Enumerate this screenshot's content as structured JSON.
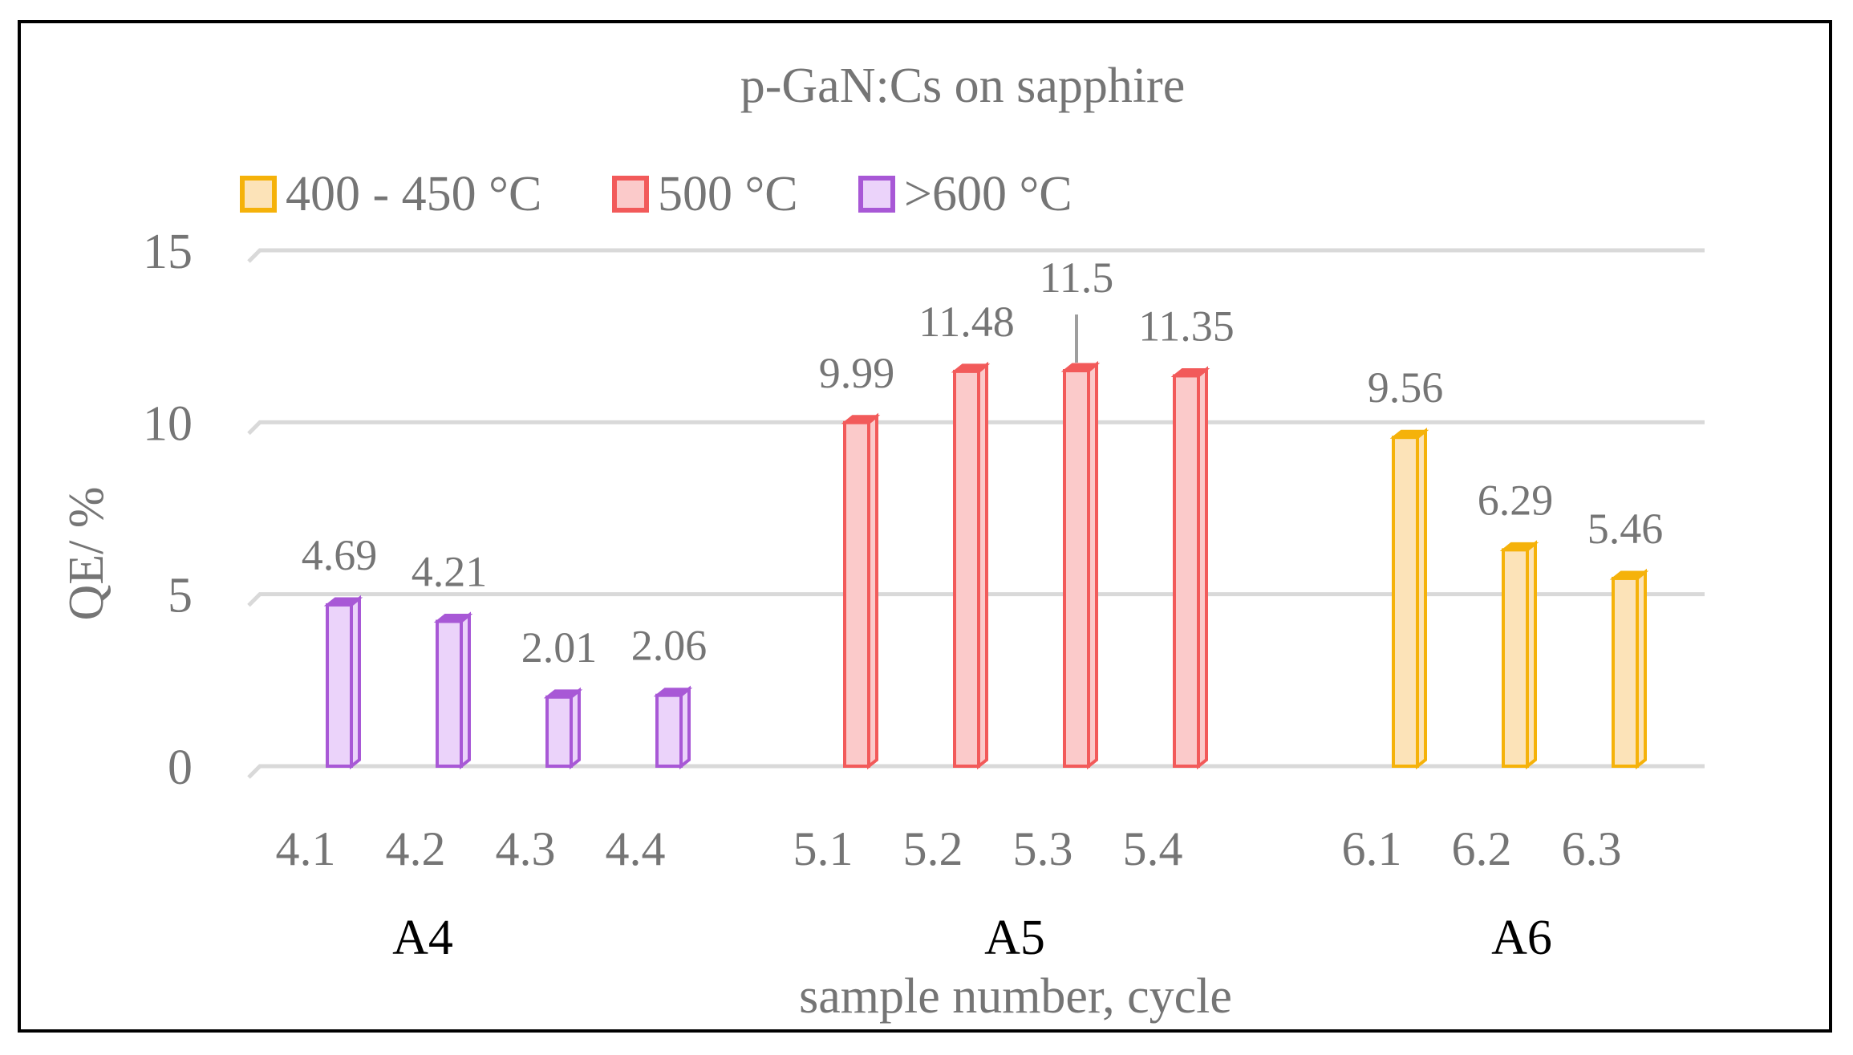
{
  "chart_data": {
    "type": "bar",
    "title": "p-GaN:Cs on sapphire",
    "xlabel": "sample number, cycle",
    "ylabel": "QE/ %",
    "ylim": [
      0,
      15
    ],
    "yticks": [
      "0",
      "5",
      "10",
      "15"
    ],
    "grid": true,
    "legend_position": "top-left",
    "legend": [
      {
        "name": "400 - 450 °C",
        "stroke": "#F5B20A",
        "fill": "#FCE3B8"
      },
      {
        "name": "500 °C",
        "stroke": "#F25A5A",
        "fill": "#FBCACA"
      },
      {
        "name": ">600 °C",
        "stroke": "#A858D6",
        "fill": "#EBD3FA"
      }
    ],
    "groups": [
      "A4",
      "A5",
      "A6"
    ],
    "bars": [
      {
        "category": "4.1",
        "group": "A4",
        "series": ">600 °C",
        "value": 4.69,
        "label": "4.69"
      },
      {
        "category": "4.2",
        "group": "A4",
        "series": ">600 °C",
        "value": 4.21,
        "label": "4.21"
      },
      {
        "category": "4.3",
        "group": "A4",
        "series": ">600 °C",
        "value": 2.01,
        "label": "2.01"
      },
      {
        "category": "4.4",
        "group": "A4",
        "series": ">600 °C",
        "value": 2.06,
        "label": "2.06"
      },
      {
        "category": "5.1",
        "group": "A5",
        "series": "500 °C",
        "value": 9.99,
        "label": "9.99"
      },
      {
        "category": "5.2",
        "group": "A5",
        "series": "500 °C",
        "value": 11.48,
        "label": "11.48"
      },
      {
        "category": "5.3",
        "group": "A5",
        "series": "500 °C",
        "value": 11.5,
        "label": "11.5"
      },
      {
        "category": "5.4",
        "group": "A5",
        "series": "500 °C",
        "value": 11.35,
        "label": "11.35"
      },
      {
        "category": "6.1",
        "group": "A6",
        "series": "400 - 450 °C",
        "value": 9.56,
        "label": "9.56"
      },
      {
        "category": "6.2",
        "group": "A6",
        "series": "400 - 450 °C",
        "value": 6.29,
        "label": "6.29"
      },
      {
        "category": "6.3",
        "group": "A6",
        "series": "400 - 450 °C",
        "value": 5.46,
        "label": "5.46"
      }
    ],
    "colors": {
      "text": "#757575",
      "group_text": "#000000",
      "grid": "#D9D9D9"
    }
  }
}
